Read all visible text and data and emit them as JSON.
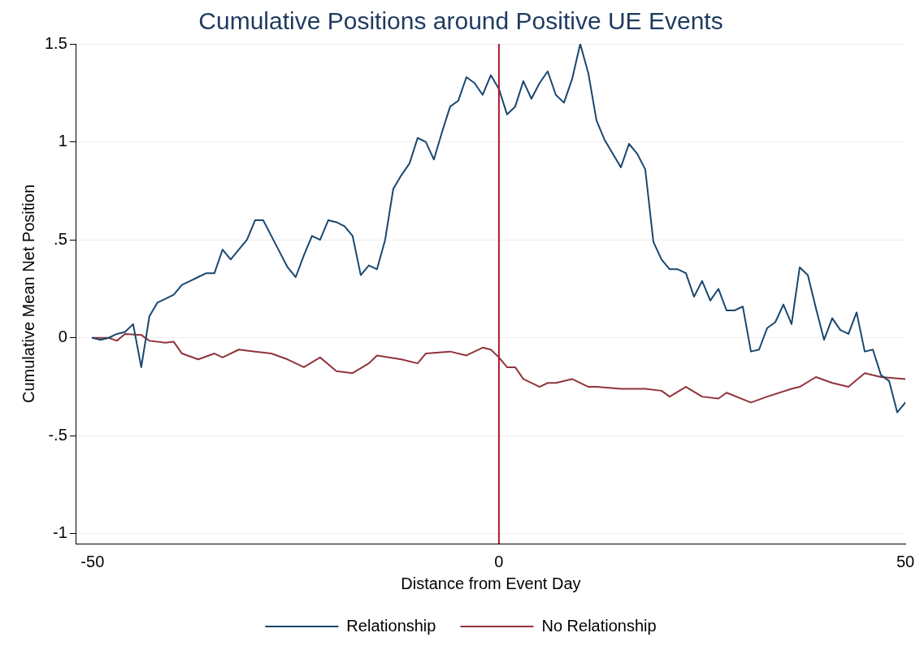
{
  "chart_data": {
    "type": "line",
    "title": "Cumulative Positions around Positive UE Events",
    "xlabel": "Distance from Event Day",
    "ylabel": "Cumulative Mean Net Position",
    "xlim": [
      -52,
      50
    ],
    "xticks": [
      -50,
      0,
      50
    ],
    "ylim": [
      -1.05,
      1.5
    ],
    "yticks": [
      {
        "value": -1,
        "label": "-1"
      },
      {
        "value": -0.5,
        "label": "-.5"
      },
      0,
      {
        "value": 0.5,
        "label": ".5"
      },
      1,
      1.5
    ],
    "grid": "y",
    "legend": "bottom",
    "marker": "none",
    "line_style": "solid",
    "ref_lines": [
      {
        "axis": "x",
        "value": 0,
        "color": "#b0182b"
      }
    ],
    "series": [
      {
        "name": "Relationship",
        "color": "#1a476f",
        "x": [
          -50,
          -49,
          -48,
          -47,
          -46,
          -45,
          -44,
          -43,
          -42,
          -41,
          -40,
          -39,
          -38,
          -37,
          -36,
          -35,
          -34,
          -33,
          -32,
          -31,
          -30,
          -29,
          -28,
          -27,
          -26,
          -25,
          -24,
          -23,
          -22,
          -21,
          -20,
          -19,
          -18,
          -17,
          -16,
          -15,
          -14,
          -13,
          -12,
          -11,
          -10,
          -9,
          -8,
          -7,
          -6,
          -5,
          -4,
          -3,
          -2,
          -1,
          0,
          1,
          2,
          3,
          4,
          5,
          6,
          7,
          8,
          9,
          10,
          11,
          12,
          13,
          14,
          15,
          16,
          17,
          18,
          19,
          20,
          21,
          22,
          23,
          24,
          25,
          26,
          27,
          28,
          29,
          30,
          31,
          32,
          33,
          34,
          35,
          36,
          37,
          38,
          39,
          40,
          41,
          42,
          43,
          44,
          45,
          46,
          47,
          48,
          49,
          50
        ],
        "values": [
          0,
          -0.01,
          0,
          0.02,
          0.03,
          0.07,
          -0.15,
          0.11,
          0.18,
          0.2,
          0.22,
          0.27,
          0.29,
          0.31,
          0.33,
          0.33,
          0.45,
          0.4,
          0.45,
          0.5,
          0.6,
          0.6,
          0.52,
          0.44,
          0.36,
          0.31,
          0.42,
          0.52,
          0.5,
          0.6,
          0.59,
          0.57,
          0.52,
          0.32,
          0.37,
          0.35,
          0.5,
          0.76,
          0.83,
          0.89,
          1.02,
          1.0,
          0.91,
          1.05,
          1.18,
          1.21,
          1.33,
          1.3,
          1.24,
          1.34,
          1.27,
          1.14,
          1.18,
          1.31,
          1.22,
          1.3,
          1.36,
          1.24,
          1.2,
          1.32,
          1.5,
          1.35,
          1.11,
          1.01,
          0.94,
          0.87,
          0.99,
          0.94,
          0.86,
          0.49,
          0.4,
          0.35,
          0.35,
          0.33,
          0.21,
          0.29,
          0.19,
          0.25,
          0.14,
          0.14,
          0.16,
          -0.07,
          -0.06,
          0.05,
          0.08,
          0.17,
          0.07,
          0.36,
          0.32,
          0.15,
          -0.01,
          0.1,
          0.04,
          0.02,
          0.13,
          -0.07,
          -0.06,
          -0.19,
          -0.22,
          -0.38,
          -0.33
        ]
      },
      {
        "name": "No Relationship",
        "color": "#90353b",
        "x": [
          -50,
          -48,
          -47,
          -46,
          -44,
          -43,
          -41,
          -40,
          -39,
          -37,
          -35,
          -34,
          -32,
          -30,
          -28,
          -26,
          -24,
          -22,
          -20,
          -18,
          -16,
          -15,
          -12,
          -10,
          -9,
          -6,
          -4,
          -2,
          -1,
          0,
          1,
          2,
          3,
          5,
          6,
          7,
          9,
          11,
          12,
          15,
          18,
          20,
          21,
          23,
          25,
          27,
          28,
          31,
          33,
          36,
          37,
          39,
          41,
          43,
          45,
          47,
          50
        ],
        "values": [
          0,
          0,
          -0.015,
          0.02,
          0.015,
          -0.015,
          -0.025,
          -0.02,
          -0.08,
          -0.11,
          -0.08,
          -0.1,
          -0.06,
          -0.07,
          -0.08,
          -0.11,
          -0.15,
          -0.1,
          -0.17,
          -0.18,
          -0.13,
          -0.09,
          -0.11,
          -0.13,
          -0.08,
          -0.07,
          -0.09,
          -0.05,
          -0.06,
          -0.1,
          -0.15,
          -0.15,
          -0.21,
          -0.25,
          -0.23,
          -0.23,
          -0.21,
          -0.25,
          -0.25,
          -0.26,
          -0.26,
          -0.27,
          -0.3,
          -0.25,
          -0.3,
          -0.31,
          -0.28,
          -0.33,
          -0.3,
          -0.26,
          -0.25,
          -0.2,
          -0.23,
          -0.25,
          -0.18,
          -0.2,
          -0.21
        ]
      }
    ]
  }
}
